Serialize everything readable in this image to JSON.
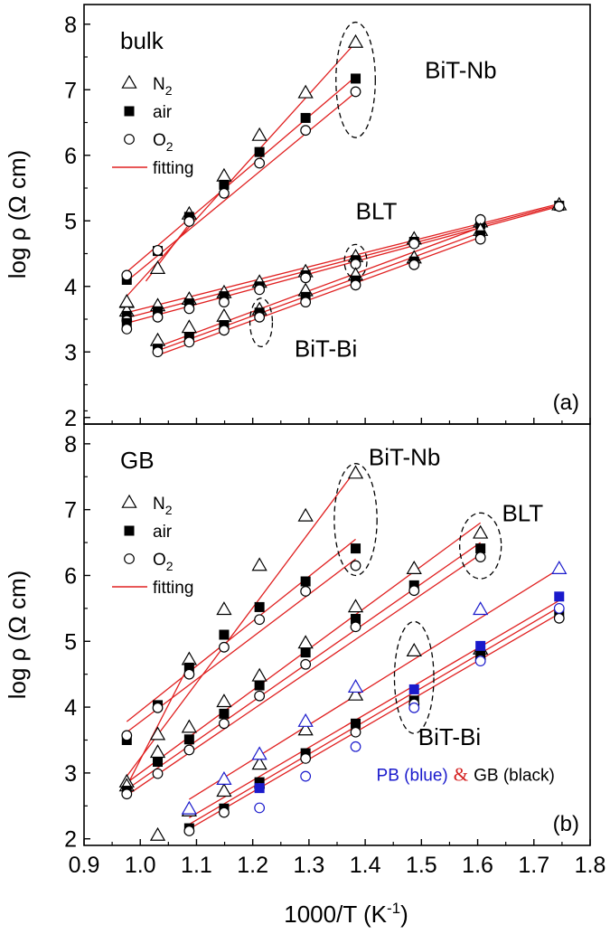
{
  "chart_data": {
    "type": "scatter",
    "shared_xlabel": "1000/T (K",
    "shared_xlabel_sup": "-1",
    "shared_xlabel_end": ")",
    "xlim": [
      0.9,
      1.8
    ],
    "x_ticks": [
      "0.9",
      "1.0",
      "1.1",
      "1.2",
      "1.3",
      "1.4",
      "1.5",
      "1.6",
      "1.7",
      "1.8"
    ],
    "panels": [
      {
        "id": "a",
        "panel_label": "(a)",
        "title": "bulk",
        "ylabel": "log ρ (Ω cm)",
        "ylim": [
          1.9,
          8.3
        ],
        "y_ticks": [
          "2",
          "3",
          "4",
          "5",
          "6",
          "7",
          "8"
        ],
        "legend": [
          {
            "marker": "triangle",
            "label": "N",
            "sub": "2"
          },
          {
            "marker": "square",
            "label": "air",
            "sub": ""
          },
          {
            "marker": "circle",
            "label": "O",
            "sub": "2"
          },
          {
            "marker": "line",
            "label": "fitting",
            "sub": ""
          }
        ],
        "annotations": [
          {
            "text": "BiT-Nb",
            "x": 1.57,
            "y": 7.3
          },
          {
            "text": "BLT",
            "x": 1.42,
            "y": 5.15
          },
          {
            "text": "BiT-Bi",
            "x": 1.33,
            "y": 3.05
          }
        ],
        "ellipses": [
          {
            "cx": 1.383,
            "cy": 7.15,
            "rx": 0.035,
            "ry": 0.88
          },
          {
            "cx": 1.383,
            "cy": 4.38,
            "rx": 0.02,
            "ry": 0.26
          },
          {
            "cx": 1.215,
            "cy": 3.45,
            "rx": 0.02,
            "ry": 0.37
          }
        ],
        "series": [
          {
            "name": "BiT-Nb N2",
            "marker": "triangle",
            "color": "#000000",
            "x": [
              0.976,
              1.031,
              1.087,
              1.149,
              1.212,
              1.294,
              1.383
            ],
            "y": [
              3.75,
              4.27,
              5.1,
              5.68,
              6.3,
              6.95,
              7.72
            ]
          },
          {
            "name": "BiT-Nb air",
            "marker": "square",
            "color": "#000000",
            "x": [
              0.976,
              1.031,
              1.087,
              1.149,
              1.212,
              1.294,
              1.383
            ],
            "y": [
              4.1,
              4.54,
              5.06,
              5.55,
              6.05,
              6.57,
              7.17
            ]
          },
          {
            "name": "BiT-Nb O2",
            "marker": "circle",
            "color": "#000000",
            "x": [
              0.976,
              1.031,
              1.087,
              1.149,
              1.212,
              1.294,
              1.383
            ],
            "y": [
              4.17,
              4.55,
              4.99,
              5.42,
              5.88,
              6.38,
              6.97
            ]
          },
          {
            "name": "BLT N2",
            "marker": "triangle",
            "color": "#000000",
            "x": [
              0.976,
              1.031,
              1.087,
              1.149,
              1.212,
              1.294,
              1.383,
              1.487,
              1.605,
              1.745
            ],
            "y": [
              3.62,
              3.7,
              3.8,
              3.9,
              4.06,
              4.22,
              4.45,
              4.72,
              4.98,
              5.24
            ]
          },
          {
            "name": "BLT air",
            "marker": "square",
            "color": "#000000",
            "x": [
              0.976,
              1.031,
              1.087,
              1.149,
              1.212,
              1.294,
              1.383,
              1.487,
              1.605,
              1.745
            ],
            "y": [
              3.55,
              3.62,
              3.74,
              3.85,
              4.0,
              4.17,
              4.4,
              4.68,
              4.95,
              5.23
            ]
          },
          {
            "name": "BLT O2",
            "marker": "circle",
            "color": "#000000",
            "x": [
              0.976,
              1.031,
              1.087,
              1.149,
              1.212,
              1.294,
              1.383,
              1.487,
              1.605,
              1.745
            ],
            "y": [
              3.48,
              3.53,
              3.66,
              3.76,
              3.95,
              4.13,
              4.34,
              4.65,
              5.02,
              5.22
            ]
          },
          {
            "name": "BiT-Bi N2",
            "marker": "triangle",
            "color": "#000000",
            "x": [
              0.976,
              1.031,
              1.087,
              1.149,
              1.212,
              1.294,
              1.383,
              1.487,
              1.605
            ],
            "y": [
              3.76,
              3.17,
              3.37,
              3.54,
              3.64,
              3.93,
              4.17,
              4.43,
              4.85
            ]
          },
          {
            "name": "BiT-Bi air",
            "marker": "square",
            "color": "#000000",
            "x": [
              0.976,
              1.031,
              1.087,
              1.149,
              1.212,
              1.294,
              1.383,
              1.487,
              1.605
            ],
            "y": [
              3.44,
              3.05,
              3.23,
              3.41,
              3.6,
              3.84,
              4.09,
              4.38,
              4.78
            ]
          },
          {
            "name": "BiT-Bi O2",
            "marker": "circle",
            "color": "#000000",
            "x": [
              0.976,
              1.031,
              1.087,
              1.149,
              1.212,
              1.294,
              1.383,
              1.487,
              1.605
            ],
            "y": [
              3.35,
              3.0,
              3.15,
              3.33,
              3.53,
              3.76,
              4.02,
              4.33,
              4.72
            ]
          }
        ],
        "fits": [
          {
            "x": [
              0.976,
              1.383
            ],
            "y": [
              3.85,
              7.72
            ]
          },
          {
            "x": [
              0.976,
              1.383
            ],
            "y": [
              4.22,
              7.2
            ]
          },
          {
            "x": [
              0.976,
              1.383
            ],
            "y": [
              4.08,
              6.96
            ]
          },
          {
            "x": [
              1.01,
              1.087
            ],
            "y": [
              4.08,
              4.95
            ]
          },
          {
            "x": [
              0.976,
              1.745
            ],
            "y": [
              3.6,
              5.26
            ]
          },
          {
            "x": [
              0.976,
              1.745
            ],
            "y": [
              3.52,
              5.24
            ]
          },
          {
            "x": [
              0.976,
              1.745
            ],
            "y": [
              3.44,
              5.22
            ]
          },
          {
            "x": [
              1.031,
              1.605
            ],
            "y": [
              3.08,
              4.9
            ]
          },
          {
            "x": [
              1.031,
              1.605
            ],
            "y": [
              3.02,
              4.82
            ]
          },
          {
            "x": [
              1.031,
              1.605
            ],
            "y": [
              2.95,
              4.75
            ]
          }
        ]
      },
      {
        "id": "b",
        "panel_label": "(b)",
        "title": "GB",
        "ylabel": "log ρ (Ω cm)",
        "ylim": [
          1.9,
          8.3
        ],
        "y_ticks": [
          "2",
          "3",
          "4",
          "5",
          "6",
          "7",
          "8"
        ],
        "legend": [
          {
            "marker": "triangle",
            "label": "N",
            "sub": "2"
          },
          {
            "marker": "square",
            "label": "air",
            "sub": ""
          },
          {
            "marker": "circle",
            "label": "O",
            "sub": "2"
          },
          {
            "marker": "line",
            "label": "fitting",
            "sub": ""
          }
        ],
        "annotations": [
          {
            "text": "BiT-Nb",
            "x": 1.47,
            "y": 7.8
          },
          {
            "text": "BLT",
            "x": 1.68,
            "y": 6.95
          },
          {
            "text": "BiT-Bi",
            "x": 1.55,
            "y": 3.55
          }
        ],
        "ellipses": [
          {
            "cx": 1.383,
            "cy": 6.85,
            "rx": 0.038,
            "ry": 0.85
          },
          {
            "cx": 1.605,
            "cy": 6.45,
            "rx": 0.037,
            "ry": 0.5
          },
          {
            "cx": 1.487,
            "cy": 4.45,
            "rx": 0.035,
            "ry": 0.85
          }
        ],
        "blend_note": {
          "blue_text": "PB (blue)",
          "amp": "&",
          "black_text": "GB (black)",
          "x": 1.42,
          "y": 2.98
        },
        "series": [
          {
            "name": "BiT-Nb N2",
            "marker": "triangle",
            "color": "#000000",
            "x": [
              0.976,
              1.031,
              1.087,
              1.149,
              1.212,
              1.294,
              1.383
            ],
            "y": [
              2.86,
              3.58,
              4.72,
              5.48,
              6.15,
              6.9,
              7.55
            ]
          },
          {
            "name": "BiT-Nb air",
            "marker": "square",
            "color": "#000000",
            "x": [
              0.976,
              1.031,
              1.087,
              1.149,
              1.212,
              1.294,
              1.383
            ],
            "y": [
              3.5,
              4.03,
              4.6,
              5.1,
              5.52,
              5.91,
              6.41
            ]
          },
          {
            "name": "BiT-Nb O2",
            "marker": "circle",
            "color": "#000000",
            "x": [
              0.976,
              1.031,
              1.087,
              1.149,
              1.212,
              1.294,
              1.383
            ],
            "y": [
              3.57,
              3.99,
              4.5,
              4.91,
              5.33,
              5.76,
              6.15
            ]
          },
          {
            "name": "BLT N2",
            "marker": "triangle",
            "color": "#000000",
            "x": [
              0.976,
              1.031,
              1.087,
              1.149,
              1.212,
              1.294,
              1.383,
              1.487,
              1.605
            ],
            "y": [
              2.8,
              3.31,
              3.69,
              4.08,
              4.47,
              4.97,
              5.52,
              6.1,
              6.64
            ]
          },
          {
            "name": "BLT air",
            "marker": "square",
            "color": "#000000",
            "x": [
              0.976,
              1.031,
              1.087,
              1.149,
              1.212,
              1.294,
              1.383,
              1.487,
              1.605
            ],
            "y": [
              2.73,
              3.17,
              3.51,
              3.9,
              4.33,
              4.83,
              5.34,
              5.85,
              6.41
            ]
          },
          {
            "name": "BLT O2",
            "marker": "circle",
            "color": "#000000",
            "x": [
              0.976,
              1.031,
              1.087,
              1.149,
              1.212,
              1.294,
              1.383,
              1.487,
              1.605
            ],
            "y": [
              2.68,
              2.99,
              3.35,
              3.75,
              4.17,
              4.65,
              5.22,
              5.77,
              6.28
            ]
          },
          {
            "name": "BiT-Bi GB N2",
            "marker": "triangle",
            "color": "#000000",
            "x": [
              1.031,
              1.087,
              1.149,
              1.212,
              1.294,
              1.383,
              1.487,
              1.605
            ],
            "y": [
              2.05,
              2.42,
              2.72,
              3.13,
              3.65,
              4.18,
              4.85,
              4.88
            ]
          },
          {
            "name": "BiT-Bi GB air",
            "marker": "square",
            "color": "#000000",
            "x": [
              1.087,
              1.149,
              1.212,
              1.294,
              1.383,
              1.487,
              1.605,
              1.745
            ],
            "y": [
              2.16,
              2.46,
              2.86,
              3.3,
              3.75,
              4.1,
              4.8,
              5.44
            ]
          },
          {
            "name": "BiT-Bi GB O2",
            "marker": "circle",
            "color": "#000000",
            "x": [
              1.087,
              1.149,
              1.212,
              1.294,
              1.383,
              1.487,
              1.605,
              1.745
            ],
            "y": [
              2.12,
              2.4,
              2.78,
              3.22,
              3.62,
              4.05,
              4.72,
              5.35
            ]
          },
          {
            "name": "BiT-Bi PB N2",
            "marker": "triangle",
            "color": "#1a1acc",
            "x": [
              1.087,
              1.149,
              1.212,
              1.294,
              1.383,
              1.605,
              1.745
            ],
            "y": [
              2.45,
              2.9,
              3.28,
              3.78,
              4.3,
              5.48,
              6.1
            ]
          },
          {
            "name": "BiT-Bi PB air",
            "marker": "square",
            "color": "#1a1acc",
            "x": [
              1.212,
              1.487,
              1.605,
              1.745
            ],
            "y": [
              2.77,
              4.27,
              4.93,
              5.68
            ]
          },
          {
            "name": "BiT-Bi PB O2",
            "marker": "circle",
            "color": "#1a1acc",
            "x": [
              1.212,
              1.294,
              1.383,
              1.487,
              1.605,
              1.745
            ],
            "y": [
              2.47,
              2.95,
              3.4,
              3.99,
              4.7,
              5.5
            ]
          }
        ],
        "fits": [
          {
            "x": [
              0.976,
              1.383
            ],
            "y": [
              2.95,
              7.6
            ]
          },
          {
            "x": [
              0.976,
              1.383
            ],
            "y": [
              3.78,
              6.55
            ]
          },
          {
            "x": [
              0.976,
              1.383
            ],
            "y": [
              3.62,
              6.25
            ]
          },
          {
            "x": [
              0.976,
              1.087
            ],
            "y": [
              2.8,
              4.65
            ]
          },
          {
            "x": [
              0.976,
              1.605
            ],
            "y": [
              2.85,
              6.8
            ]
          },
          {
            "x": [
              0.976,
              1.605
            ],
            "y": [
              2.75,
              6.5
            ]
          },
          {
            "x": [
              0.976,
              1.605
            ],
            "y": [
              2.66,
              6.32
            ]
          },
          {
            "x": [
              1.087,
              1.745
            ],
            "y": [
              2.6,
              6.1
            ]
          },
          {
            "x": [
              1.087,
              1.745
            ],
            "y": [
              2.32,
              5.62
            ]
          },
          {
            "x": [
              1.087,
              1.745
            ],
            "y": [
              2.22,
              5.52
            ]
          },
          {
            "x": [
              1.087,
              1.745
            ],
            "y": [
              2.15,
              5.42
            ]
          }
        ]
      }
    ]
  }
}
